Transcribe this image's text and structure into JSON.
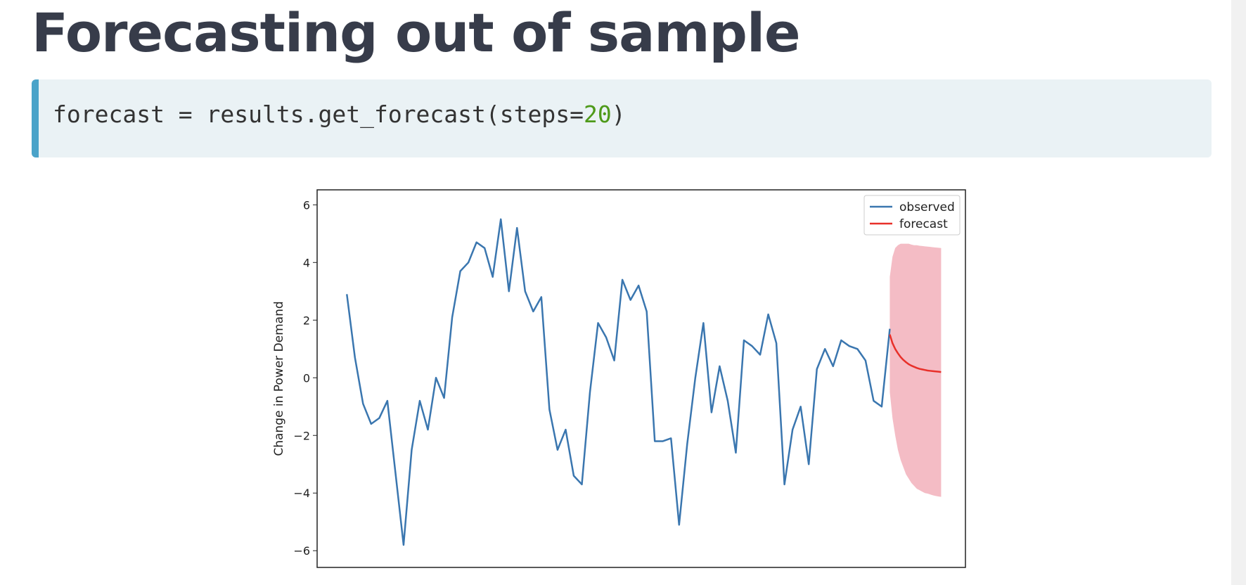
{
  "title": "Forecasting out of sample",
  "code": {
    "text": "forecast = results.get_forecast(steps=",
    "number": "20",
    "close": ")"
  },
  "chart_data": {
    "type": "line",
    "ylabel": "Change in Power Demand",
    "xlim": [
      -11,
      229
    ],
    "ylim": [
      -6.58,
      6.52
    ],
    "yticks": [
      {
        "value": -6,
        "label": "−6"
      },
      {
        "value": -4,
        "label": "−4"
      },
      {
        "value": -2,
        "label": "−2"
      },
      0,
      2,
      4,
      6
    ],
    "legend": "upper right",
    "series": [
      {
        "name": "observed",
        "color": "#3a76af",
        "x": [
          0,
          3,
          6,
          9,
          12,
          15,
          18,
          21,
          24,
          27,
          30,
          33,
          36,
          39,
          42,
          45,
          48,
          51,
          54,
          57,
          60,
          63,
          66,
          69,
          72,
          75,
          78,
          81,
          84,
          87,
          90,
          93,
          96,
          99,
          102,
          105,
          108,
          111,
          114,
          117,
          120,
          123,
          126,
          129,
          132,
          135,
          138,
          141,
          144,
          147,
          150,
          153,
          156,
          159,
          162,
          165,
          168,
          171,
          174,
          177,
          180,
          183,
          186,
          189,
          192,
          195,
          198,
          201
        ],
        "values": [
          2.9,
          0.7,
          -0.9,
          -1.6,
          -1.4,
          -0.8,
          -3.3,
          -5.8,
          -2.5,
          -0.8,
          -1.8,
          0,
          -0.7,
          2.1,
          3.7,
          4.0,
          4.7,
          4.5,
          3.5,
          5.5,
          3.0,
          5.2,
          3.0,
          2.3,
          2.8,
          -1.1,
          -2.5,
          -1.8,
          -3.4,
          -3.7,
          -0.5,
          1.9,
          1.4,
          0.6,
          3.4,
          2.7,
          3.2,
          2.3,
          -2.2,
          -2.2,
          -2.1,
          -5.1,
          -2.3,
          0,
          1.9,
          -1.2,
          0.4,
          -0.8,
          -2.6,
          1.3,
          1.1,
          0.8,
          2.2,
          1.2,
          -3.7,
          -1.8,
          -1.0,
          -3.0,
          0.3,
          1.0,
          0.4,
          1.3,
          1.1,
          1.0,
          0.6,
          -0.8,
          -1.0,
          1.7
        ]
      },
      {
        "name": "forecast",
        "color": "#e8302a",
        "x": [
          201,
          202,
          203,
          204,
          205,
          206,
          207,
          208,
          209,
          210,
          211,
          212,
          213,
          214,
          215,
          216,
          217,
          218,
          219,
          220
        ],
        "values": [
          1.5,
          1.2,
          1.0,
          0.85,
          0.72,
          0.62,
          0.54,
          0.47,
          0.42,
          0.38,
          0.34,
          0.31,
          0.29,
          0.27,
          0.25,
          0.24,
          0.23,
          0.22,
          0.21,
          0.2
        ]
      }
    ],
    "confidence_interval": {
      "color": "#f4bcc5",
      "upper": [
        3.5,
        4.2,
        4.5,
        4.6,
        4.65,
        4.65,
        4.65,
        4.65,
        4.62,
        4.6,
        4.6,
        4.58,
        4.57,
        4.56,
        4.55,
        4.54,
        4.53,
        4.52,
        4.51,
        4.5
      ],
      "lower": [
        -0.5,
        -1.4,
        -2.0,
        -2.5,
        -2.85,
        -3.1,
        -3.35,
        -3.5,
        -3.65,
        -3.75,
        -3.85,
        -3.9,
        -3.95,
        -4.0,
        -4.02,
        -4.05,
        -4.08,
        -4.1,
        -4.12,
        -4.13
      ]
    }
  }
}
